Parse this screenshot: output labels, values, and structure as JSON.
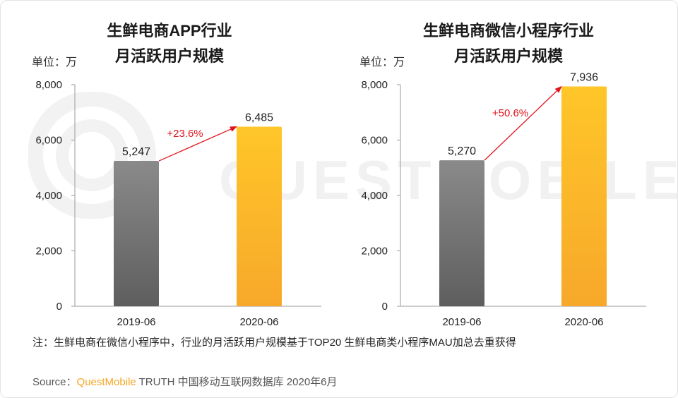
{
  "watermark": {
    "text": "QUESTMOBILE"
  },
  "charts": [
    {
      "title_line1": "生鲜电商APP行业",
      "title_line2": "月活跃用户规模",
      "unit_label": "单位：万"
    },
    {
      "title_line1": "生鲜电商微信小程序行业",
      "title_line2": "月活跃用户规模",
      "unit_label": "单位：万"
    }
  ],
  "chart_data": [
    {
      "type": "bar",
      "title": "生鲜电商APP行业 月活跃用户规模",
      "categories": [
        "2019-06",
        "2020-06"
      ],
      "values": [
        5247,
        6485
      ],
      "value_labels": [
        "5,247",
        "6,485"
      ],
      "growth_label": "+23.6%",
      "ylim": [
        0,
        8000
      ],
      "yticks": [
        0,
        2000,
        4000,
        6000,
        8000
      ],
      "ytick_labels": [
        "0",
        "2,000",
        "4,000",
        "6,000",
        "8,000"
      ],
      "ylabel": "单位：万",
      "bar_colors": [
        "#7a7a7a",
        "#fbb829"
      ]
    },
    {
      "type": "bar",
      "title": "生鲜电商微信小程序行业 月活跃用户规模",
      "categories": [
        "2019-06",
        "2020-06"
      ],
      "values": [
        5270,
        7936
      ],
      "value_labels": [
        "5,270",
        "7,936"
      ],
      "growth_label": "+50.6%",
      "ylim": [
        0,
        8000
      ],
      "yticks": [
        0,
        2000,
        4000,
        6000,
        8000
      ],
      "ytick_labels": [
        "0",
        "2,000",
        "4,000",
        "6,000",
        "8,000"
      ],
      "ylabel": "单位：万",
      "bar_colors": [
        "#7a7a7a",
        "#fbb829"
      ]
    }
  ],
  "colors": {
    "growth_arrow": "#e0141e",
    "brand": "#f5a623"
  },
  "footer": {
    "note": "注：生鲜电商在微信小程序中，行业的月活跃用户规模基于TOP20 生鲜电商类小程序MAU加总去重获得",
    "source_prefix": "Source：",
    "source_brand": "QuestMobile",
    "source_rest": " TRUTH 中国移动互联网数据库 2020年6月"
  }
}
